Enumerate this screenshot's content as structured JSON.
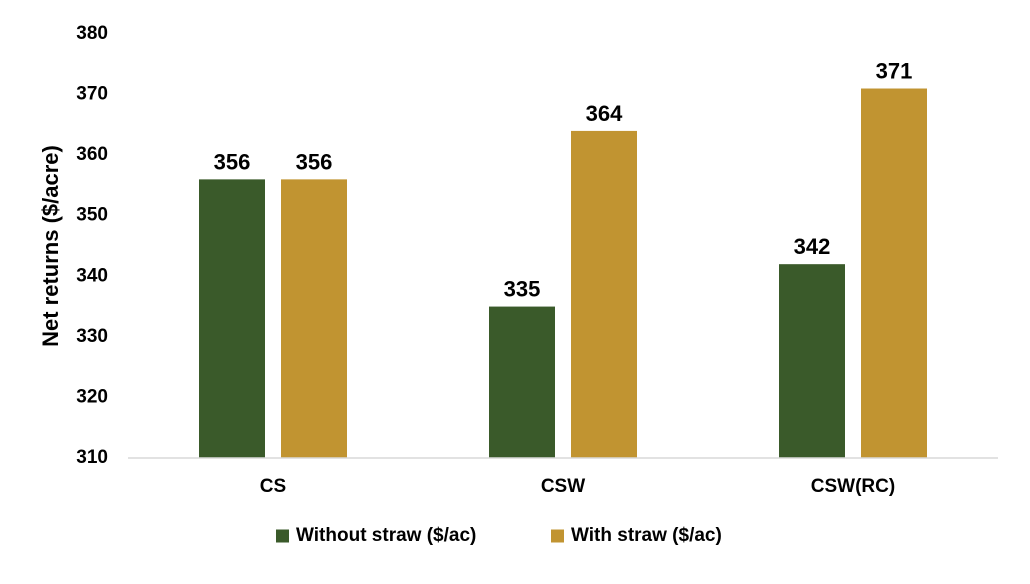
{
  "chart_data": {
    "type": "bar",
    "categories": [
      "CS",
      "CSW",
      "CSW(RC)"
    ],
    "series": [
      {
        "name": "Without straw ($/ac)",
        "color": "#3a5a2a",
        "values": [
          356,
          335,
          342
        ],
        "data_labels": [
          "356",
          "335",
          "342"
        ]
      },
      {
        "name": "With straw ($/ac)",
        "color": "#c19431",
        "values": [
          356,
          364,
          371
        ],
        "data_labels": [
          "356",
          "364",
          "371"
        ]
      }
    ],
    "ylabel": "Net returns ($/acre)",
    "ylim": [
      310,
      380
    ],
    "yticks": [
      310,
      320,
      330,
      340,
      350,
      360,
      370,
      380
    ],
    "ytick_labels": [
      "310",
      "320",
      "330",
      "340",
      "350",
      "360",
      "370",
      "380"
    ],
    "grid": false,
    "legend_position": "bottom"
  }
}
